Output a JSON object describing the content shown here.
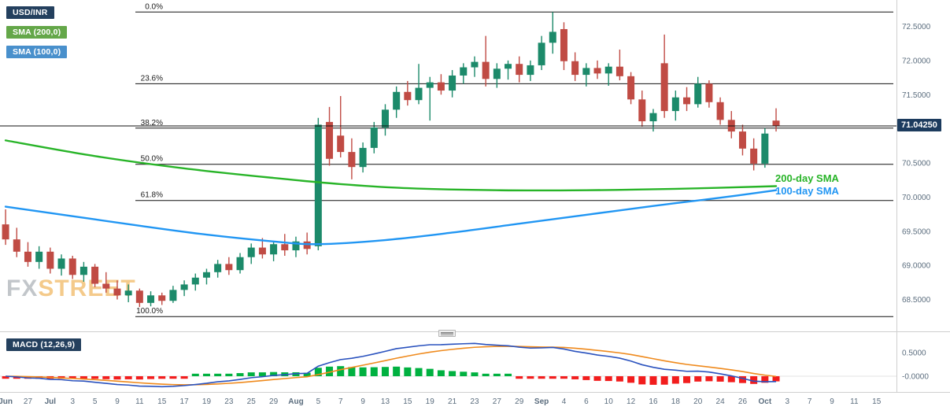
{
  "header": {
    "symbol_badge": "USD/INR",
    "sma200_badge": "SMA (200,0)",
    "sma100_badge": "SMA (100,0)",
    "macd_badge": "MACD (12,26,9)"
  },
  "watermark": {
    "fx": "FX",
    "street": "STREET"
  },
  "price_badge": "71.04250",
  "sma_labels": {
    "sma200": "200-day SMA",
    "sma100": "100-day SMA"
  },
  "colors": {
    "candle_up": "#1c8a6a",
    "candle_down": "#c04b44",
    "sma200": "#28b428",
    "sma100": "#2196f3",
    "macd_line": "#2a52be",
    "macd_signal": "#ef8a1d",
    "hist_up": "#00b140",
    "hist_down": "#f21d1d",
    "fib_line": "#111111",
    "price_line": "#111111",
    "axis_text": "#5b6d7e",
    "badge_dark": "#24405e",
    "badge_green": "#57a039",
    "badge_blue": "#3a87c8",
    "price_badge_bg": "#1c3b5e"
  },
  "chart_data": {
    "type": "candlestick",
    "symbol": "USD/INR",
    "current_price": 71.0425,
    "x_slot_count": 80,
    "price_axis_ticks": [
      {
        "value": 72.5,
        "label": "72.5000"
      },
      {
        "value": 72.0,
        "label": "72.0000"
      },
      {
        "value": 71.5,
        "label": "71.5000"
      },
      {
        "value": 70.5,
        "label": "70.5000"
      },
      {
        "value": 70.0,
        "label": "70.0000"
      },
      {
        "value": 69.5,
        "label": "69.5000"
      },
      {
        "value": 69.0,
        "label": "69.0000"
      },
      {
        "value": 68.5,
        "label": "68.5000"
      }
    ],
    "fib_levels": [
      {
        "label": "0.0%",
        "price": 72.71
      },
      {
        "label": "23.6%",
        "price": 71.66
      },
      {
        "label": "38.2%",
        "price": 71.01
      },
      {
        "label": "50.0%",
        "price": 70.48
      },
      {
        "label": "61.8%",
        "price": 69.95
      },
      {
        "label": "100.0%",
        "price": 68.25
      }
    ],
    "candles": [
      [
        "Jun 25",
        69.6,
        69.82,
        69.3,
        69.38
      ],
      [
        "Jun 26",
        69.38,
        69.55,
        69.12,
        69.2
      ],
      [
        "Jun 27",
        69.2,
        69.34,
        68.98,
        69.05
      ],
      [
        "Jun 28",
        69.05,
        69.28,
        68.95,
        69.2
      ],
      [
        "Jul 1",
        69.2,
        69.26,
        68.88,
        68.95
      ],
      [
        "Jul 2",
        68.95,
        69.16,
        68.85,
        69.1
      ],
      [
        "Jul 3",
        69.1,
        69.14,
        68.8,
        68.86
      ],
      [
        "Jul 4",
        68.86,
        69.05,
        68.76,
        68.98
      ],
      [
        "Jul 5",
        68.98,
        69.02,
        68.68,
        68.73
      ],
      [
        "Jul 8",
        68.73,
        68.9,
        68.6,
        68.66
      ],
      [
        "Jul 9",
        68.66,
        68.78,
        68.5,
        68.56
      ],
      [
        "Jul 10",
        68.56,
        68.72,
        68.46,
        68.63
      ],
      [
        "Jul 11",
        68.63,
        68.66,
        68.39,
        68.45
      ],
      [
        "Jul 12",
        68.45,
        68.62,
        68.4,
        68.56
      ],
      [
        "Jul 15",
        68.56,
        68.6,
        68.42,
        68.48
      ],
      [
        "Jul 16",
        68.48,
        68.7,
        68.45,
        68.64
      ],
      [
        "Jul 17",
        68.64,
        68.78,
        68.55,
        68.72
      ],
      [
        "Jul 18",
        68.72,
        68.88,
        68.63,
        68.82
      ],
      [
        "Jul 19",
        68.82,
        68.95,
        68.72,
        68.9
      ],
      [
        "Jul 22",
        68.9,
        69.08,
        68.82,
        69.02
      ],
      [
        "Jul 23",
        69.02,
        69.12,
        68.86,
        68.93
      ],
      [
        "Jul 24",
        68.93,
        69.18,
        68.88,
        69.12
      ],
      [
        "Jul 25",
        69.12,
        69.32,
        69.02,
        69.26
      ],
      [
        "Jul 26",
        69.26,
        69.4,
        69.1,
        69.16
      ],
      [
        "Jul 29",
        69.16,
        69.36,
        69.06,
        69.31
      ],
      [
        "Jul 31",
        69.31,
        69.46,
        69.14,
        69.22
      ],
      [
        "Aug 1",
        69.22,
        69.42,
        69.12,
        69.35
      ],
      [
        "Aug 2",
        69.35,
        69.48,
        69.16,
        69.24
      ],
      [
        "Aug 5",
        69.28,
        71.16,
        69.22,
        71.06
      ],
      [
        "Aug 6",
        71.1,
        71.32,
        70.46,
        70.56
      ],
      [
        "Aug 7",
        70.9,
        71.48,
        70.58,
        70.66
      ],
      [
        "Aug 8",
        70.66,
        70.86,
        70.26,
        70.44
      ],
      [
        "Aug 9",
        70.44,
        70.8,
        70.36,
        70.72
      ],
      [
        "Aug 12",
        70.72,
        71.1,
        70.64,
        71.02
      ],
      [
        "Aug 13",
        71.02,
        71.36,
        70.9,
        71.28
      ],
      [
        "Aug 14",
        71.28,
        71.62,
        71.16,
        71.54
      ],
      [
        "Aug 15",
        71.54,
        71.7,
        71.34,
        71.42
      ],
      [
        "Aug 16",
        71.42,
        71.95,
        71.36,
        71.6
      ],
      [
        "Aug 19",
        71.6,
        71.76,
        71.12,
        71.68
      ],
      [
        "Aug 20",
        71.68,
        71.8,
        71.5,
        71.56
      ],
      [
        "Aug 21",
        71.56,
        71.86,
        71.46,
        71.78
      ],
      [
        "Aug 22",
        71.78,
        71.96,
        71.66,
        71.9
      ],
      [
        "Aug 23",
        71.9,
        72.06,
        71.76,
        71.98
      ],
      [
        "Aug 26",
        71.98,
        72.36,
        71.62,
        71.73
      ],
      [
        "Aug 27",
        71.73,
        71.96,
        71.6,
        71.88
      ],
      [
        "Aug 28",
        71.88,
        72.0,
        71.72,
        71.95
      ],
      [
        "Aug 29",
        71.95,
        72.06,
        71.68,
        71.79
      ],
      [
        "Aug 30",
        71.79,
        72.0,
        71.7,
        71.93
      ],
      [
        "Sep 2",
        71.93,
        72.36,
        71.86,
        72.26
      ],
      [
        "Sep 3",
        72.26,
        72.71,
        72.1,
        72.42
      ],
      [
        "Sep 4",
        72.46,
        72.56,
        71.86,
        71.99
      ],
      [
        "Sep 5",
        71.99,
        72.12,
        71.7,
        71.79
      ],
      [
        "Sep 6",
        71.79,
        71.96,
        71.62,
        71.89
      ],
      [
        "Sep 9",
        71.89,
        72.0,
        71.73,
        71.81
      ],
      [
        "Sep 10",
        71.81,
        71.96,
        71.63,
        71.91
      ],
      [
        "Sep 11",
        71.91,
        72.16,
        71.71,
        71.77
      ],
      [
        "Sep 12",
        71.77,
        71.83,
        71.36,
        71.43
      ],
      [
        "Sep 13",
        71.43,
        71.56,
        71.03,
        71.11
      ],
      [
        "Sep 16",
        71.11,
        71.29,
        70.96,
        71.23
      ],
      [
        "Sep 17",
        71.96,
        72.38,
        71.16,
        71.26
      ],
      [
        "Sep 18",
        71.26,
        71.56,
        71.12,
        71.46
      ],
      [
        "Sep 19",
        71.46,
        71.61,
        71.26,
        71.36
      ],
      [
        "Sep 20",
        71.36,
        71.76,
        71.31,
        71.66
      ],
      [
        "Sep 23",
        71.66,
        71.71,
        71.31,
        71.39
      ],
      [
        "Sep 24",
        71.39,
        71.46,
        71.06,
        71.13
      ],
      [
        "Sep 25",
        71.13,
        71.26,
        70.86,
        70.96
      ],
      [
        "Sep 26",
        70.96,
        71.06,
        70.61,
        70.71
      ],
      [
        "Sep 27",
        70.71,
        70.86,
        70.39,
        70.49
      ],
      [
        "Sep 30",
        70.49,
        71.01,
        70.43,
        70.93
      ],
      [
        "Oct 1",
        71.12,
        71.3,
        70.96,
        71.04
      ]
    ],
    "sma200_points": [
      [
        0,
        70.83
      ],
      [
        8,
        70.6
      ],
      [
        16,
        70.42
      ],
      [
        24,
        70.28
      ],
      [
        30,
        70.19
      ],
      [
        36,
        70.13
      ],
      [
        44,
        70.1
      ],
      [
        52,
        70.1
      ],
      [
        60,
        70.12
      ],
      [
        69,
        70.16
      ]
    ],
    "sma100_points": [
      [
        0,
        69.86
      ],
      [
        6,
        69.72
      ],
      [
        12,
        69.58
      ],
      [
        18,
        69.45
      ],
      [
        24,
        69.35
      ],
      [
        28,
        69.31
      ],
      [
        34,
        69.37
      ],
      [
        40,
        69.48
      ],
      [
        46,
        69.61
      ],
      [
        52,
        69.74
      ],
      [
        58,
        69.87
      ],
      [
        64,
        69.99
      ],
      [
        69,
        70.1
      ]
    ],
    "macd": {
      "label": "MACD (12,26,9)",
      "params": [
        12,
        26,
        9
      ],
      "axis_ticks": [
        {
          "value": 0.5,
          "label": "0.5000"
        },
        {
          "value": 0.0,
          "label": "-0.0000"
        }
      ]
    },
    "x_labels": [
      "Jun",
      "27",
      "Jul",
      "3",
      "5",
      "9",
      "11",
      "15",
      "17",
      "19",
      "23",
      "25",
      "29",
      "Aug",
      "5",
      "7",
      "9",
      "13",
      "15",
      "19",
      "21",
      "23",
      "27",
      "29",
      "Sep",
      "4",
      "6",
      "10",
      "12",
      "16",
      "18",
      "20",
      "24",
      "26",
      "Oct",
      "3",
      "7",
      "9",
      "11",
      "15"
    ]
  }
}
